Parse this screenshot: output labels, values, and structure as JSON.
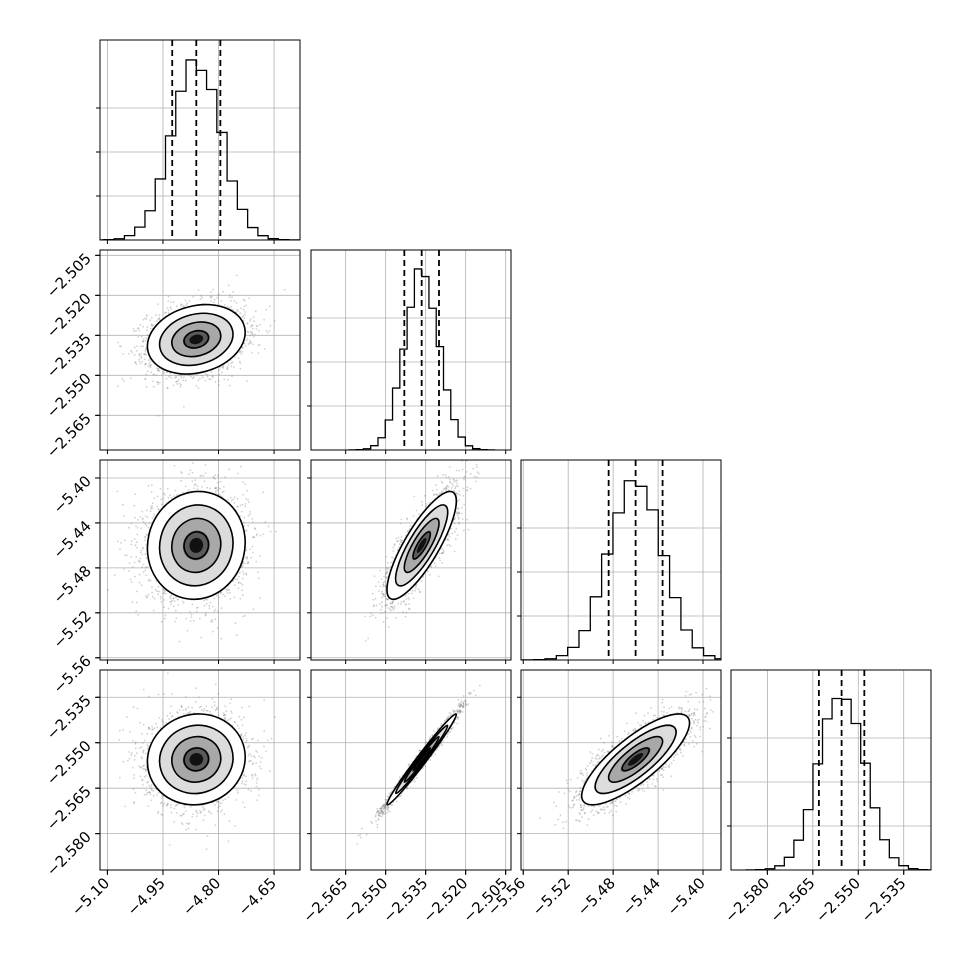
{
  "chart_data": {
    "type": "corner",
    "title": "",
    "parameters": [
      {
        "label": "",
        "range": [
          -5.12,
          -4.58
        ],
        "ticks": [
          -5.1,
          -4.95,
          -4.8,
          -4.65
        ],
        "tick_labels": [
          "−5.10",
          "−4.95",
          "−4.80",
          "−4.65"
        ],
        "mean": -4.86,
        "sd": 0.066,
        "quantiles": [
          -4.925,
          -4.86,
          -4.795
        ]
      },
      {
        "label": "",
        "range": [
          -2.578,
          -2.503
        ],
        "ticks": [
          -2.565,
          -2.55,
          -2.535,
          -2.52,
          -2.505
        ],
        "tick_labels": [
          "−2.565",
          "−2.550",
          "−2.535",
          "−2.520",
          "−2.505"
        ],
        "mean": -2.5365,
        "sd": 0.0065,
        "quantiles": [
          -2.543,
          -2.5365,
          -2.53
        ]
      },
      {
        "label": "",
        "range": [
          -5.562,
          -5.384
        ],
        "ticks": [
          -5.56,
          -5.52,
          -5.48,
          -5.44,
          -5.4
        ],
        "tick_labels": [
          "−5.56",
          "−5.52",
          "−5.48",
          "−5.44",
          "−5.40"
        ],
        "mean": -5.46,
        "sd": 0.024,
        "quantiles": [
          -5.484,
          -5.46,
          -5.436
        ]
      },
      {
        "label": "",
        "range": [
          -2.592,
          -2.526
        ],
        "ticks": [
          -2.58,
          -2.565,
          -2.55,
          -2.535
        ],
        "tick_labels": [
          "−2.580",
          "−2.565",
          "−2.550",
          "−2.535"
        ],
        "mean": -2.5555,
        "sd": 0.0075,
        "quantiles": [
          -2.563,
          -2.5555,
          -2.548
        ]
      }
    ],
    "histograms": [
      {
        "param": 0,
        "bins": 20,
        "peak_count_fraction": 1.0
      },
      {
        "param": 1,
        "bins": 20,
        "peak_count_fraction": 1.0
      },
      {
        "param": 2,
        "bins": 20,
        "peak_count_fraction": 1.0
      },
      {
        "param": 3,
        "bins": 20,
        "peak_count_fraction": 1.0
      }
    ],
    "correlations": [
      {
        "x": 0,
        "y": 1,
        "rho": 0.2
      },
      {
        "x": 0,
        "y": 2,
        "rho": 0.05
      },
      {
        "x": 1,
        "y": 2,
        "rho": 0.82
      },
      {
        "x": 0,
        "y": 3,
        "rho": 0.05
      },
      {
        "x": 1,
        "y": 3,
        "rho": 0.985
      },
      {
        "x": 2,
        "y": 3,
        "rho": 0.8
      }
    ],
    "contour_levels_sigma": [
      0.5,
      1.0,
      1.5,
      2.0
    ],
    "quantile_lines": [
      0.16,
      0.5,
      0.84
    ],
    "grid": true,
    "legend": "none"
  }
}
